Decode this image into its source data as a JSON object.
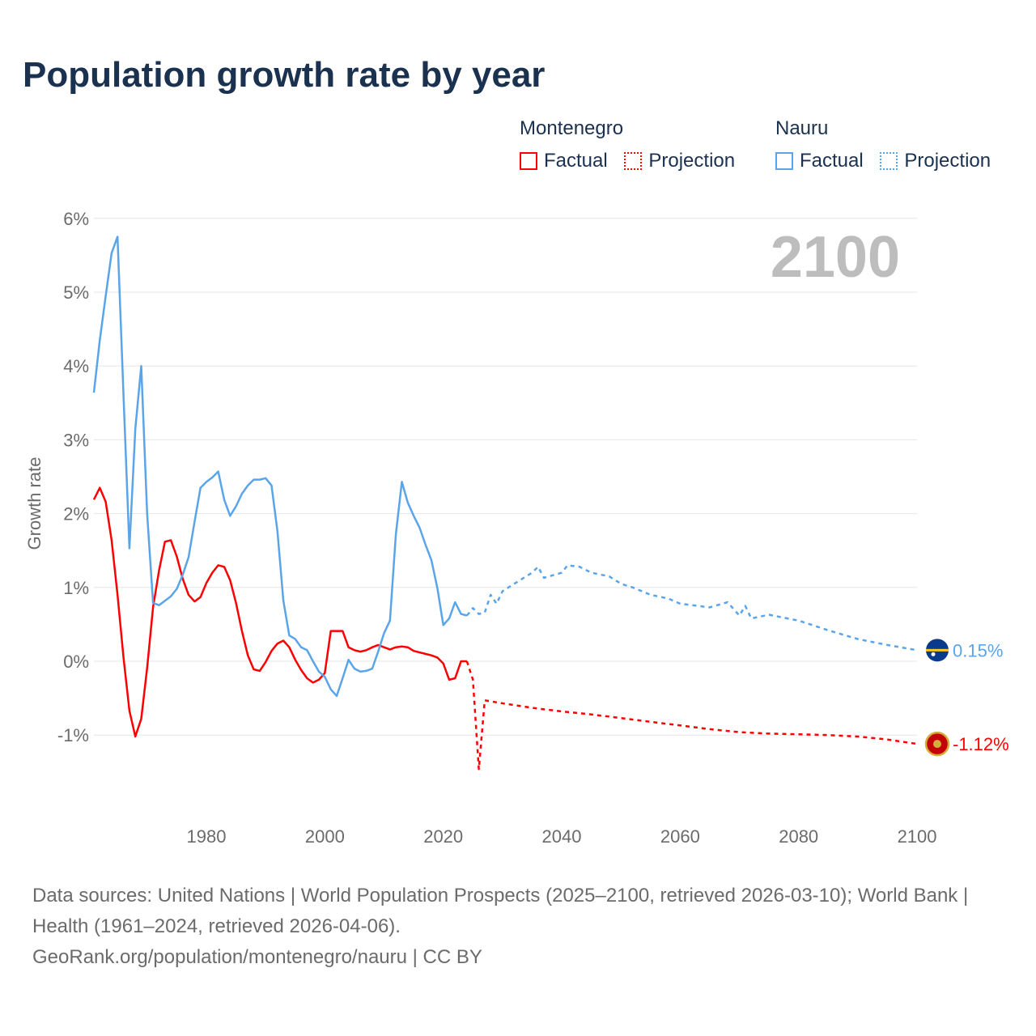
{
  "title": "Population growth rate by year",
  "legend": {
    "groups": [
      {
        "name": "Montenegro",
        "color": "#ff0000",
        "factual": "Factual",
        "projection": "Projection"
      },
      {
        "name": "Nauru",
        "color": "#5aa5ea",
        "factual": "Factual",
        "projection": "Projection"
      }
    ]
  },
  "year_label": "2100",
  "footer": {
    "sources": "Data sources: United Nations | World Population Prospects (2025–2100, retrieved 2026-03-10); World Bank | Health (1961–2024, retrieved 2026-04-06).",
    "credit": "GeoRank.org/population/montenegro/nauru | CC BY"
  },
  "chart_data": {
    "type": "line",
    "title": "Population growth rate by year",
    "xlabel": "",
    "ylabel": "Growth rate",
    "xlim": [
      1960,
      2100
    ],
    "ylim": [
      -2,
      6
    ],
    "x_ticks": [
      1980,
      2000,
      2020,
      2040,
      2060,
      2080,
      2100
    ],
    "y_ticks": [
      -1,
      0,
      1,
      2,
      3,
      4,
      5,
      6
    ],
    "y_tick_labels": [
      "-1%",
      "0%",
      "1%",
      "2%",
      "3%",
      "4%",
      "5%",
      "6%"
    ],
    "grid": true,
    "series": [
      {
        "name": "Montenegro",
        "kind": "Factual",
        "color": "#ff0000",
        "x": [
          1961,
          1962,
          1963,
          1964,
          1965,
          1966,
          1967,
          1968,
          1969,
          1970,
          1971,
          1972,
          1973,
          1974,
          1975,
          1976,
          1977,
          1978,
          1979,
          1980,
          1981,
          1982,
          1983,
          1984,
          1985,
          1986,
          1987,
          1988,
          1989,
          1990,
          1991,
          1992,
          1993,
          1994,
          1995,
          1996,
          1997,
          1998,
          1999,
          2000,
          2001,
          2002,
          2003,
          2004,
          2005,
          2006,
          2007,
          2008,
          2009,
          2010,
          2011,
          2012,
          2013,
          2014,
          2015,
          2016,
          2017,
          2018,
          2019,
          2020,
          2021,
          2022,
          2023,
          2024
        ],
        "y": [
          2.19,
          2.35,
          2.16,
          1.64,
          0.9,
          0.05,
          -0.67,
          -1.02,
          -0.78,
          -0.09,
          0.73,
          1.23,
          1.62,
          1.64,
          1.42,
          1.12,
          0.9,
          0.81,
          0.87,
          1.06,
          1.2,
          1.3,
          1.28,
          1.1,
          0.79,
          0.41,
          0.08,
          -0.11,
          -0.13,
          -0.01,
          0.14,
          0.24,
          0.28,
          0.19,
          0.02,
          -0.12,
          -0.23,
          -0.29,
          -0.25,
          -0.16,
          0.41,
          0.41,
          0.41,
          0.19,
          0.15,
          0.13,
          0.15,
          0.19,
          0.22,
          0.19,
          0.16,
          0.19,
          0.2,
          0.19,
          0.14,
          0.12,
          0.1,
          0.08,
          0.05,
          -0.03,
          -0.25,
          -0.23,
          0.0,
          0.0
        ]
      },
      {
        "name": "Montenegro",
        "kind": "Projection",
        "color": "#ff0000",
        "x": [
          2024,
          2025,
          2026,
          2027,
          2030,
          2035,
          2040,
          2045,
          2050,
          2055,
          2060,
          2065,
          2070,
          2075,
          2080,
          2085,
          2090,
          2095,
          2100
        ],
        "y": [
          0.0,
          -0.25,
          -1.46,
          -0.53,
          -0.57,
          -0.63,
          -0.68,
          -0.72,
          -0.77,
          -0.82,
          -0.87,
          -0.92,
          -0.96,
          -0.98,
          -0.99,
          -1.0,
          -1.02,
          -1.06,
          -1.12
        ]
      },
      {
        "name": "Nauru",
        "kind": "Factual",
        "color": "#5aa5ea",
        "x": [
          1961,
          1962,
          1963,
          1964,
          1965,
          1966,
          1967,
          1968,
          1969,
          1970,
          1971,
          1972,
          1973,
          1974,
          1975,
          1976,
          1977,
          1978,
          1979,
          1980,
          1981,
          1982,
          1983,
          1984,
          1985,
          1986,
          1987,
          1988,
          1989,
          1990,
          1991,
          1992,
          1993,
          1994,
          1995,
          1996,
          1997,
          1998,
          1999,
          2000,
          2001,
          2002,
          2003,
          2004,
          2005,
          2006,
          2007,
          2008,
          2009,
          2010,
          2011,
          2012,
          2013,
          2014,
          2015,
          2016,
          2017,
          2018,
          2019,
          2020,
          2021,
          2022,
          2023,
          2024
        ],
        "y": [
          3.64,
          4.35,
          4.95,
          5.53,
          5.75,
          3.6,
          1.53,
          3.15,
          4.0,
          2.0,
          0.79,
          0.76,
          0.82,
          0.88,
          0.98,
          1.17,
          1.41,
          1.89,
          2.35,
          2.43,
          2.49,
          2.57,
          2.19,
          1.97,
          2.1,
          2.27,
          2.38,
          2.46,
          2.46,
          2.48,
          2.38,
          1.76,
          0.82,
          0.35,
          0.3,
          0.19,
          0.15,
          0.0,
          -0.14,
          -0.21,
          -0.38,
          -0.47,
          -0.23,
          0.02,
          -0.1,
          -0.14,
          -0.13,
          -0.1,
          0.13,
          0.38,
          0.55,
          1.72,
          2.43,
          2.15,
          1.97,
          1.81,
          1.58,
          1.37,
          0.99,
          0.49,
          0.58,
          0.8,
          0.64,
          0.62
        ]
      },
      {
        "name": "Nauru",
        "kind": "Projection",
        "color": "#5aa5ea",
        "x": [
          2024,
          2025,
          2026,
          2027,
          2028,
          2029,
          2030,
          2032,
          2035,
          2036,
          2037,
          2040,
          2041,
          2043,
          2045,
          2048,
          2050,
          2052,
          2055,
          2058,
          2060,
          2065,
          2068,
          2070,
          2071,
          2072,
          2075,
          2080,
          2085,
          2090,
          2095,
          2100
        ],
        "y": [
          0.62,
          0.72,
          0.64,
          0.66,
          0.9,
          0.78,
          0.95,
          1.05,
          1.2,
          1.28,
          1.13,
          1.2,
          1.3,
          1.28,
          1.2,
          1.15,
          1.05,
          1.0,
          0.9,
          0.85,
          0.78,
          0.73,
          0.8,
          0.62,
          0.75,
          0.58,
          0.63,
          0.55,
          0.42,
          0.3,
          0.22,
          0.15
        ]
      }
    ],
    "end_labels": [
      {
        "country": "Nauru",
        "value": 0.15,
        "text": "0.15%"
      },
      {
        "country": "Montenegro",
        "value": -1.12,
        "text": "-1.12%"
      }
    ]
  }
}
